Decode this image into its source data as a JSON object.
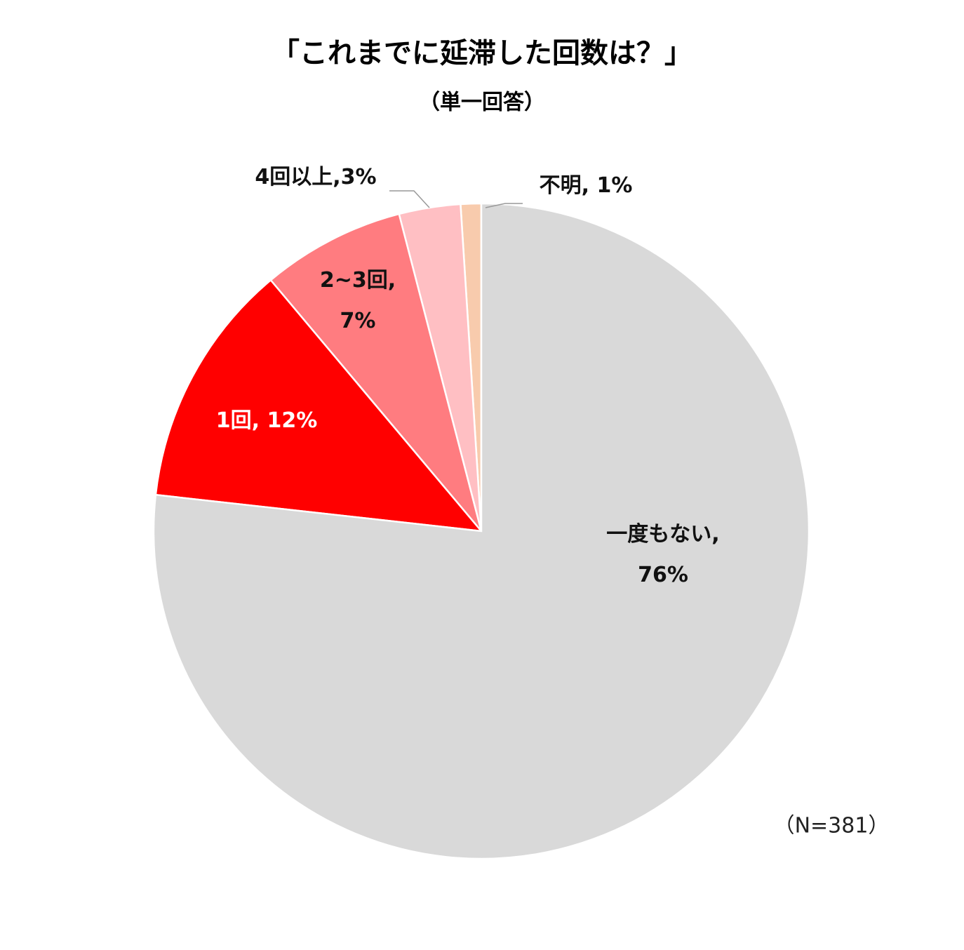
{
  "chart_data": {
    "type": "pie",
    "title": "「これまでに延滞した回数は？」",
    "subtitle": "（単一回答）",
    "note": "（N=381）",
    "values": [
      76,
      12,
      7,
      3,
      1
    ],
    "value_labels": [
      [
        "一度もない,",
        "76%"
      ],
      [
        "1回, 12%"
      ],
      [
        "2~3回,",
        "7%"
      ],
      [
        "4回以上,3%"
      ],
      [
        "不明, 1%"
      ]
    ],
    "colors": [
      "#d9d9d9",
      "#ff0000",
      "#ff7c80",
      "#ffbfc3",
      "#f8cbad"
    ]
  }
}
